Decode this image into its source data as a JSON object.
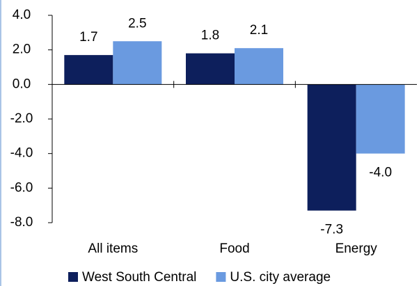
{
  "chart_data": {
    "type": "bar",
    "categories": [
      "All items",
      "Food",
      "Energy"
    ],
    "series": [
      {
        "name": "West South Central",
        "color": "#0d1f5c",
        "values": [
          1.7,
          1.8,
          -7.3
        ],
        "value_labels": [
          "1.7",
          "1.8",
          "-7.3"
        ]
      },
      {
        "name": "U.S. city average",
        "color": "#6a9ae0",
        "values": [
          2.5,
          2.1,
          -4.0
        ],
        "value_labels": [
          "2.5",
          "2.1",
          "-4.0"
        ]
      }
    ],
    "ylim": [
      -8,
      4
    ],
    "yticks": [
      {
        "value": -8,
        "label": "-8.0"
      },
      {
        "value": -6,
        "label": "-6.0"
      },
      {
        "value": -4,
        "label": "-4.0"
      },
      {
        "value": -2,
        "label": "-2.0"
      },
      {
        "value": 0,
        "label": "0.0"
      },
      {
        "value": 2,
        "label": "2.0"
      },
      {
        "value": 4,
        "label": "4.0"
      }
    ],
    "grid": false
  }
}
